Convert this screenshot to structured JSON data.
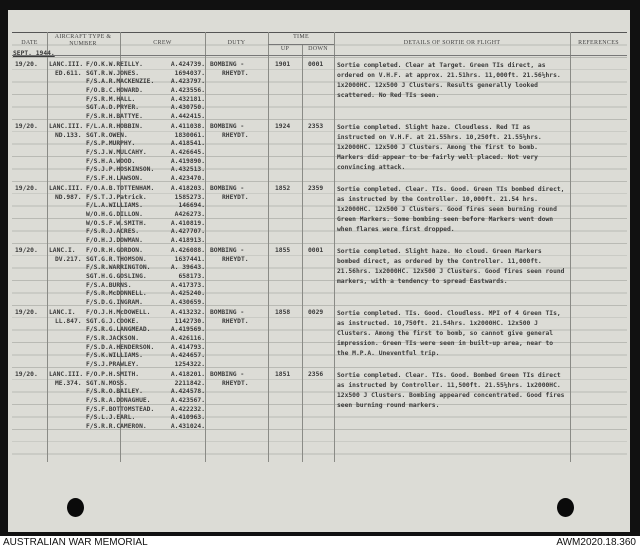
{
  "header": {
    "date": "Date",
    "aircraft": "Aircraft Type & Number",
    "crew": "Crew",
    "duty": "Duty",
    "time": "Time",
    "up": "Up",
    "down": "Down",
    "details": "Details of Sortie or Flight",
    "references": "References"
  },
  "month": "SEPT. 1944.",
  "entries": [
    {
      "date": "19/20.",
      "type": "LANC.III.",
      "serial": "ED.611.",
      "duty1": "BOMBING -",
      "duty2": "RHEYDT.",
      "up": "1901",
      "down": "0001",
      "crew": [
        [
          "F/O.K.W.REILLY.",
          "A.424739."
        ],
        [
          "SGT.R.W.JONES.",
          "1694037."
        ],
        [
          "F/S.A.R.MACKENZIE.",
          "A.423797."
        ],
        [
          "F/O.B.C.HOWARD.",
          "A.423556."
        ],
        [
          "F/S.R.M.HALL.",
          "A.432181."
        ],
        [
          "SGT.A.D.PRYER.",
          "A.430750."
        ],
        [
          "F/S.R.H.BATTYE.",
          "A.442415."
        ]
      ],
      "details": "Sortie completed. Clear at Target. Green TIs direct, as ordered on V.H.F. at approx. 21.51hrs. 11,000ft. 21.56½hrs. 1x2000HC. 12x500 J Clusters. Results generally looked scattered. No Red TIs seen."
    },
    {
      "date": "19/20.",
      "type": "LANC.III.",
      "serial": "ND.133.",
      "duty1": "BOMBING -",
      "duty2": "RHEYDT.",
      "up": "1924",
      "down": "2353",
      "crew": [
        [
          "F/L.A.R.HOBBIN.",
          "A.411038."
        ],
        [
          "SGT.R.OWEN.",
          "1830061."
        ],
        [
          "F/S.P.MURPHY.",
          "A.418541."
        ],
        [
          "F/S.J.W.MULCAHY.",
          "A.426645."
        ],
        [
          "F/S.H.A.WOOD.",
          "A.419890."
        ],
        [
          "F/S.J.P.HOSKINSON.",
          "A.432513."
        ],
        [
          "F/S.F.H.LAWSON.",
          "A.423470."
        ]
      ],
      "details": "Sortie completed. Slight haze. Cloudless. Red TI as instructed on V.H.F. at 21.55hrs. 10,250ft. 21.55½hrs. 1x2000HC. 12x500 J Clusters. Among the first to bomb. Markers did appear to be fairly well placed. Not very convincing attack."
    },
    {
      "date": "19/20.",
      "type": "LANC.III.",
      "serial": "ND.987.",
      "duty1": "BOMBING -",
      "duty2": "RHEYDT.",
      "up": "1852",
      "down": "2359",
      "crew": [
        [
          "F/O.A.B.TOTTENHAM.",
          "A.418203."
        ],
        [
          "F/S.T.J.Patrick.",
          "1585273."
        ],
        [
          "F/L.A.WILLIAMS.",
          "146694."
        ],
        [
          "W/O.H.G.DILLON.",
          "A426273."
        ],
        [
          "W/O.S.F.W.SMITH.",
          "A.410819."
        ],
        [
          "F/S.R.J.ACRES.",
          "A.427707."
        ],
        [
          "F/O.H.J.DOWMAN.",
          "A.418913."
        ]
      ],
      "details": "Sortie completed. Clear. TIs. Good. Green TIs bombed direct, as instructed by the Controller. 10,000ft. 21.54 hrs. 1x2000HC. 12x500 J Clusters. Good fires seen burning round Green Markers. Some bombing seen before Markers went down when flares were first dropped."
    },
    {
      "date": "19/20.",
      "type": "LANC.I.",
      "serial": "DV.217.",
      "duty1": "BOMBING -",
      "duty2": "RHEYDT.",
      "up": "1855",
      "down": "0001",
      "crew": [
        [
          "F/O.R.H.GORDON.",
          "A.426088."
        ],
        [
          "SGT.G.R.THOMSON.",
          "1637441."
        ],
        [
          "F/S.R.WARRINGTON.",
          "A. 39643."
        ],
        [
          "SGT.H.G.GOSLING.",
          "658173."
        ],
        [
          "F/S.A.BURNS.",
          "A.417373."
        ],
        [
          "F/S.R.McDONNELL.",
          "A.425240."
        ],
        [
          "F/S.D.G.INGRAM.",
          "A.430659."
        ]
      ],
      "details": "Sortie completed. Slight haze. No cloud. Green Markers bombed direct, as ordered by the Controller. 11,000ft. 21.56hrs. 1x2000HC. 12x500 J Clusters. Good fires seen round markers, with a tendency to spread Eastwards."
    },
    {
      "date": "19/20.",
      "type": "LANC.I.",
      "serial": "LL.847.",
      "duty1": "BOMBING -",
      "duty2": "RHEYDT.",
      "up": "1858",
      "down": "0029",
      "crew": [
        [
          "F/O.J.H.McDOWELL.",
          "A.413232."
        ],
        [
          "SGT.G.J.COOKE.",
          "1142730."
        ],
        [
          "F/S.R.G.LANGMEAD.",
          "A.419569."
        ],
        [
          "F/S.R.JACKSON.",
          "A.426116."
        ],
        [
          "F/S.D.A.HENDERSON.",
          "A.414793."
        ],
        [
          "F/S.K.WILLIAMS.",
          "A.424657."
        ],
        [
          "F/S.J.PRAWLEY.",
          "1254322."
        ]
      ],
      "details": "Sortie completed. TIs. Good. Cloudless. MPI of 4 Green TIs, as instructed. 10,750ft. 21.54hrs. 1x2000HC. 12x500 J Clusters. Among the first to bomb, so cannot give general impression. Green TIs were seen in built-up area, near to the M.P.A. Uneventful trip."
    },
    {
      "date": "19/20.",
      "type": "LANC.III.",
      "serial": "ME.374.",
      "duty1": "BOMBING -",
      "duty2": "RHEYDT.",
      "up": "1851",
      "down": "2356",
      "crew": [
        [
          "F/O.P.H.SMITH.",
          "A.418201."
        ],
        [
          "SGT.N.MOSS.",
          "2211842."
        ],
        [
          "F/S.R.O.BAILEY.",
          "A.424578."
        ],
        [
          "F/S.R.A.DONAGHUE.",
          "A.423567."
        ],
        [
          "F/S.F.BOTTOMSTEAD.",
          "A.422232."
        ],
        [
          "F/S.L.J.EARL.",
          "A.410963."
        ],
        [
          "F/S.R.R.CAMERON.",
          "A.431024."
        ]
      ],
      "details": "Sortie completed. Clear. TIs. Good. Bombed Green TIs direct as instructed by Controller. 11,500ft. 21.55½hrs. 1x2000HC. 12x500 J Clusters. Bombing appeared concentrated. Good fires seen burning round markers."
    }
  ],
  "footer": {
    "left": "AUSTRALIAN WAR MEMORIAL",
    "right": "AWM2020.18.360"
  }
}
